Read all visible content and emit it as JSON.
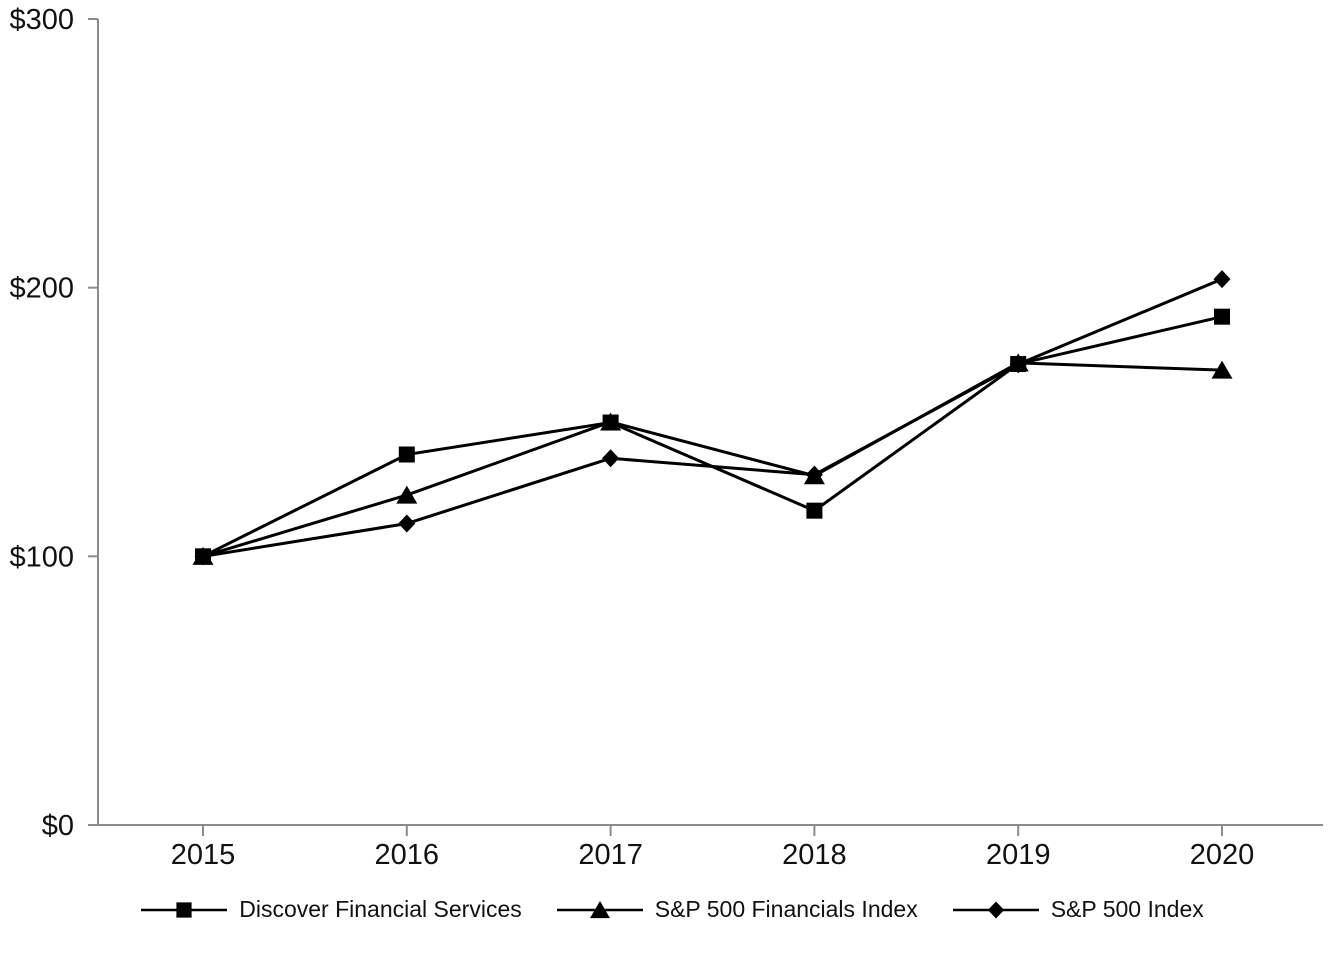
{
  "chart_data": {
    "type": "line",
    "title": "",
    "xlabel": "",
    "ylabel": "",
    "categories": [
      "2015",
      "2016",
      "2017",
      "2018",
      "2019",
      "2020"
    ],
    "series": [
      {
        "name": "Discover Financial Services",
        "marker": "square",
        "values": [
          100,
          137.9,
          149.8,
          117.0,
          171.6,
          189.2
        ]
      },
      {
        "name": "S&P 500 Financials Index",
        "marker": "triangle",
        "values": [
          100,
          122.8,
          150.0,
          130.0,
          172.0,
          169.3
        ]
      },
      {
        "name": "S&P 500 Index",
        "marker": "diamond",
        "values": [
          100,
          112.2,
          136.5,
          130.4,
          171.5,
          203.2
        ]
      }
    ],
    "ylim": [
      0,
      300
    ],
    "y_ticks": [
      {
        "value": 0,
        "label": "$0"
      },
      {
        "value": 100,
        "label": "$100"
      },
      {
        "value": 200,
        "label": "$200"
      },
      {
        "value": 300,
        "label": "$300"
      }
    ],
    "grid": false,
    "legend_position": "bottom-center",
    "axis_color": "#8c8c8c",
    "line_color": "#000000",
    "text_color": "#111111",
    "background_color": "#ffffff"
  }
}
